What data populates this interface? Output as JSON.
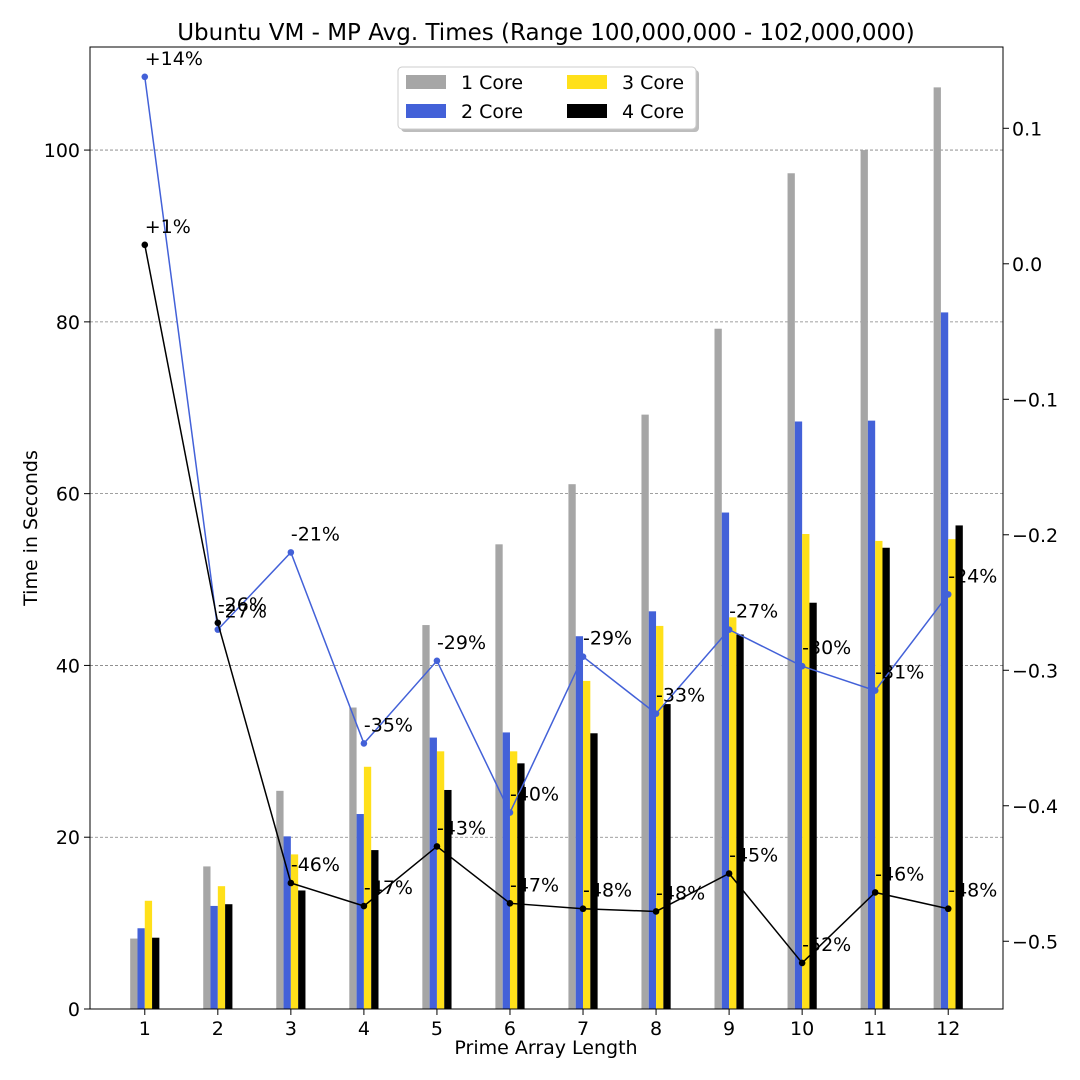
{
  "chart_data": {
    "type": "bar",
    "title": "Ubuntu VM - MP Avg. Times (Range 100,000,000 - 102,000,000)",
    "xlabel": "Prime Array Length",
    "ylabel": "Time in Seconds",
    "ylim": [
      0,
      112
    ],
    "y2lim": [
      -0.55,
      0.16
    ],
    "yticks": [
      "0",
      "20",
      "40",
      "60",
      "80",
      "100"
    ],
    "y2ticks": [
      "−0.5",
      "−0.4",
      "−0.3",
      "−0.2",
      "−0.1",
      "0.0",
      "0.1"
    ],
    "grid": true,
    "legend_position": "top-center",
    "categories": [
      "1",
      "2",
      "3",
      "4",
      "5",
      "6",
      "7",
      "8",
      "9",
      "10",
      "11",
      "12"
    ],
    "series": [
      {
        "name": "1 Core",
        "color": "#a6a6a6",
        "values": [
          8.2,
          16.6,
          25.4,
          35.1,
          44.7,
          54.1,
          61.1,
          69.2,
          79.2,
          97.3,
          100.0,
          107.3
        ]
      },
      {
        "name": "2 Core",
        "color": "#4361d8",
        "values": [
          9.4,
          12.0,
          20.1,
          22.7,
          31.6,
          32.2,
          43.4,
          46.3,
          57.8,
          68.4,
          68.5,
          81.1
        ]
      },
      {
        "name": "3 Core",
        "color": "#ffe01a",
        "values": [
          12.6,
          14.3,
          18.0,
          28.2,
          30.0,
          30.0,
          38.2,
          44.6,
          45.6,
          55.3,
          54.5,
          54.7
        ]
      },
      {
        "name": "4 Core",
        "color": "#000000",
        "values": [
          8.3,
          12.2,
          13.8,
          18.5,
          25.5,
          28.6,
          32.1,
          35.5,
          43.6,
          47.3,
          53.7,
          56.3
        ]
      }
    ],
    "lines": [
      {
        "series": "2 Core",
        "color": "#4361d8",
        "axis": "right",
        "values": [
          0.138,
          -0.27,
          -0.213,
          -0.354,
          -0.293,
          -0.405,
          -0.29,
          -0.332,
          -0.27,
          -0.297,
          -0.315,
          -0.244
        ],
        "labels": [
          "+14%",
          "-27%",
          "-21%",
          "-35%",
          "-29%",
          "-40%",
          "-29%",
          "-33%",
          "-27%",
          "-30%",
          "-31%",
          "-24%"
        ]
      },
      {
        "series": "4 Core",
        "color": "#000000",
        "axis": "right",
        "values": [
          0.014,
          -0.265,
          -0.457,
          -0.474,
          -0.43,
          -0.472,
          -0.476,
          -0.478,
          -0.45,
          -0.516,
          -0.464,
          -0.476
        ],
        "labels": [
          "+1%",
          "-26%",
          "-46%",
          "-47%",
          "-43%",
          "-47%",
          "-48%",
          "-48%",
          "-45%",
          "-52%",
          "-46%",
          "-48%"
        ]
      }
    ]
  }
}
